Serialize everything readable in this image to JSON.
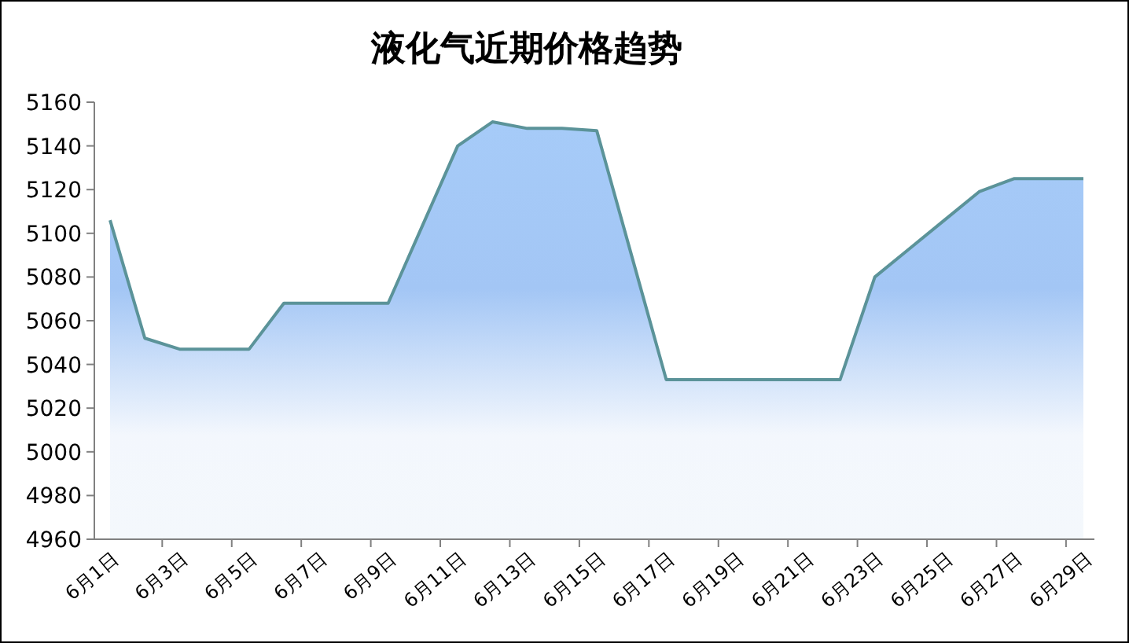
{
  "chart_data": {
    "type": "area",
    "title": "液化气近期价格趋势",
    "categories": [
      "6月1日",
      null,
      "6月3日",
      null,
      "6月5日",
      null,
      "6月7日",
      null,
      "6月9日",
      null,
      "6月11日",
      null,
      "6月13日",
      null,
      "6月15日",
      null,
      "6月17日",
      null,
      "6月19日",
      null,
      "6月21日",
      null,
      "6月23日",
      null,
      "6月25日",
      null,
      "6月27日",
      null,
      "6月29日"
    ],
    "series": [
      {
        "color": "#5b9399",
        "values": [
          5106,
          5052,
          5047,
          5047,
          5047,
          5068,
          5068,
          5068,
          5068,
          5104,
          5140,
          5151,
          5148,
          5148,
          5147,
          5090,
          5033,
          5033,
          5033,
          5033,
          5033,
          5033,
          5080,
          5093,
          5106,
          5119,
          5125,
          5125,
          5125
        ]
      }
    ],
    "ylim": [
      4960,
      5160
    ],
    "yticks": [
      4960,
      4980,
      5000,
      5020,
      5040,
      5060,
      5080,
      5100,
      5120,
      5140,
      5160
    ],
    "grid": false
  }
}
